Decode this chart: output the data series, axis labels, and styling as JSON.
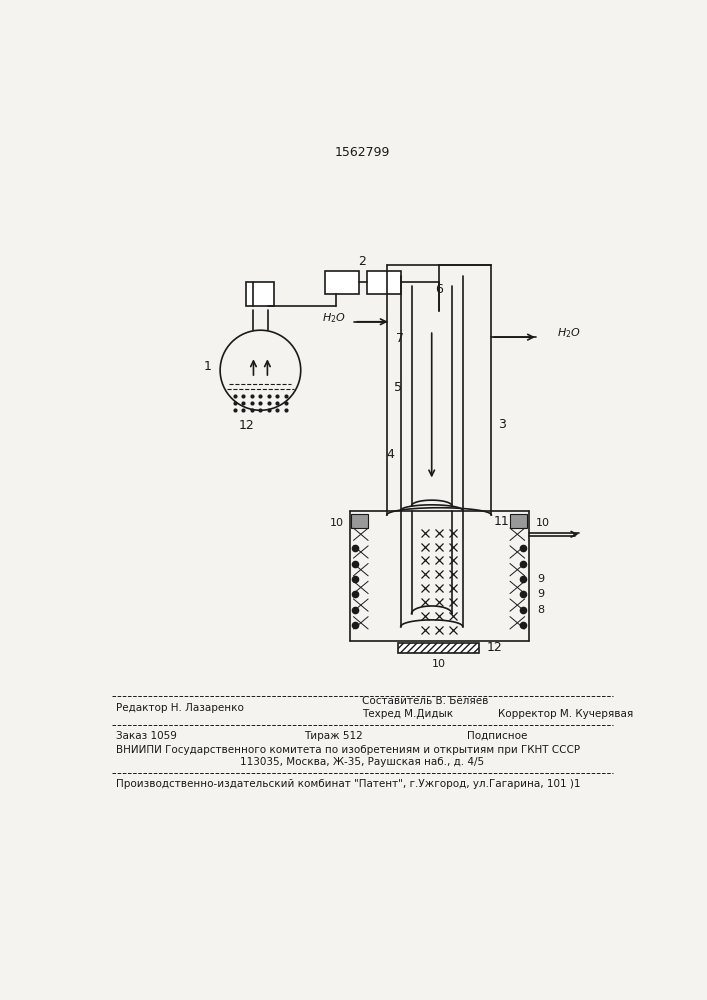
{
  "patent_number": "1562799",
  "background_color": "#f5f3f0",
  "line_color": "#1a1a1a",
  "editor_line": "Редактор Н. Лазаренко",
  "compiler_line": "Составитель В. Беляев",
  "techred_line": "Техред М.Дидык",
  "corrector_line": "Корректор М. Кучерявая",
  "order_line": "Заказ 1059",
  "tirazh_line": "Тираж 512",
  "podpisnoe_line": "Подписное",
  "vniipи_line": "ВНИИПИ Государственного комитета по изобретениям и открытиям при ГКНТ СССР",
  "address_line": "113035, Москва, Ж-35, Раушская наб., д. 4/5",
  "factory_line": "Производственно-издательский комбинат \"Патент\", г.Ужгород, ул.Гагарина, 101 )1"
}
